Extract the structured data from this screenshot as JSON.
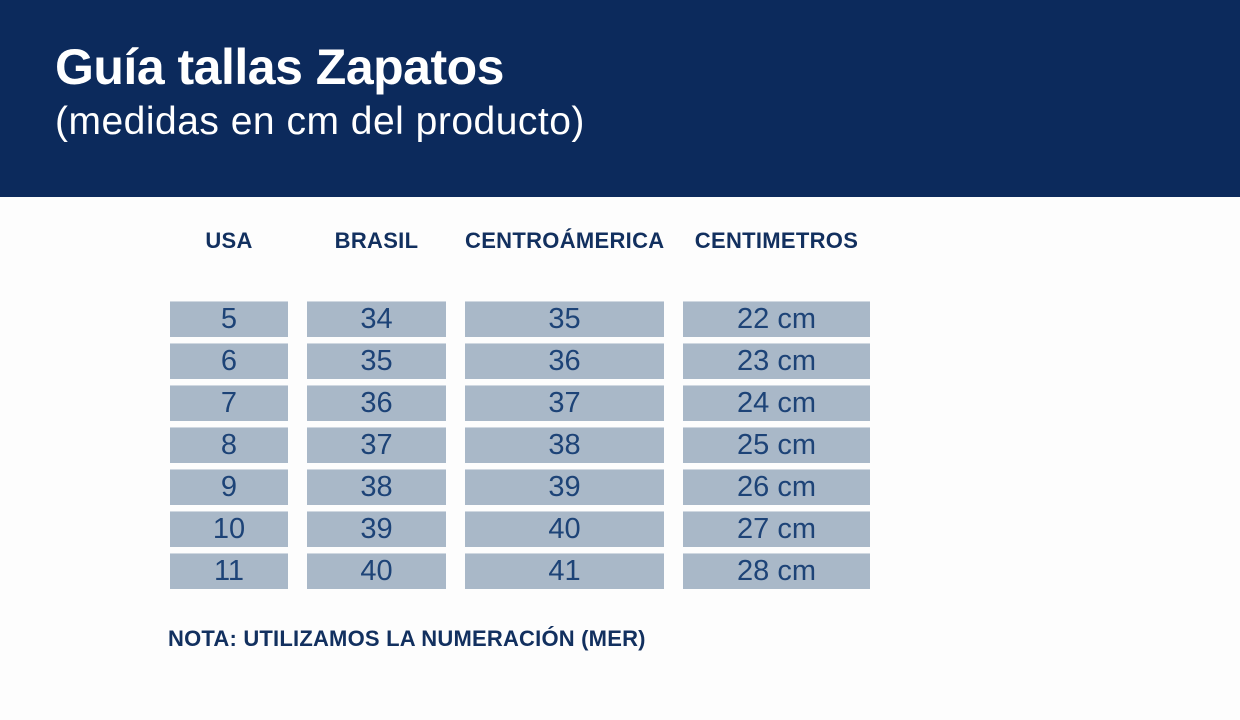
{
  "header": {
    "title": "Guía tallas Zapatos",
    "subtitle": "(medidas en cm del producto)"
  },
  "table": {
    "columns": [
      "USA",
      "BRASIL",
      "CENTROÁMERICA",
      "CENTIMETROS"
    ],
    "rows": [
      [
        "5",
        "34",
        "35",
        "22 cm"
      ],
      [
        "6",
        "35",
        "36",
        "23 cm"
      ],
      [
        "7",
        "36",
        "37",
        "24 cm"
      ],
      [
        "8",
        "37",
        "38",
        "25 cm"
      ],
      [
        "9",
        "38",
        "39",
        "26 cm"
      ],
      [
        "10",
        "39",
        "40",
        "27 cm"
      ],
      [
        "11",
        "40",
        "41",
        "28 cm"
      ]
    ]
  },
  "note": {
    "text": "NOTA: UTILIZAMOS LA NUMERACIÓN (MER)"
  },
  "colors": {
    "header_bg": "#0c2a5c",
    "header_text": "#ffffff",
    "cell_bg": "#a9b8c8",
    "cell_text": "#1d4377",
    "label_text": "#12305f",
    "page_bg": "#fdfdfd"
  }
}
